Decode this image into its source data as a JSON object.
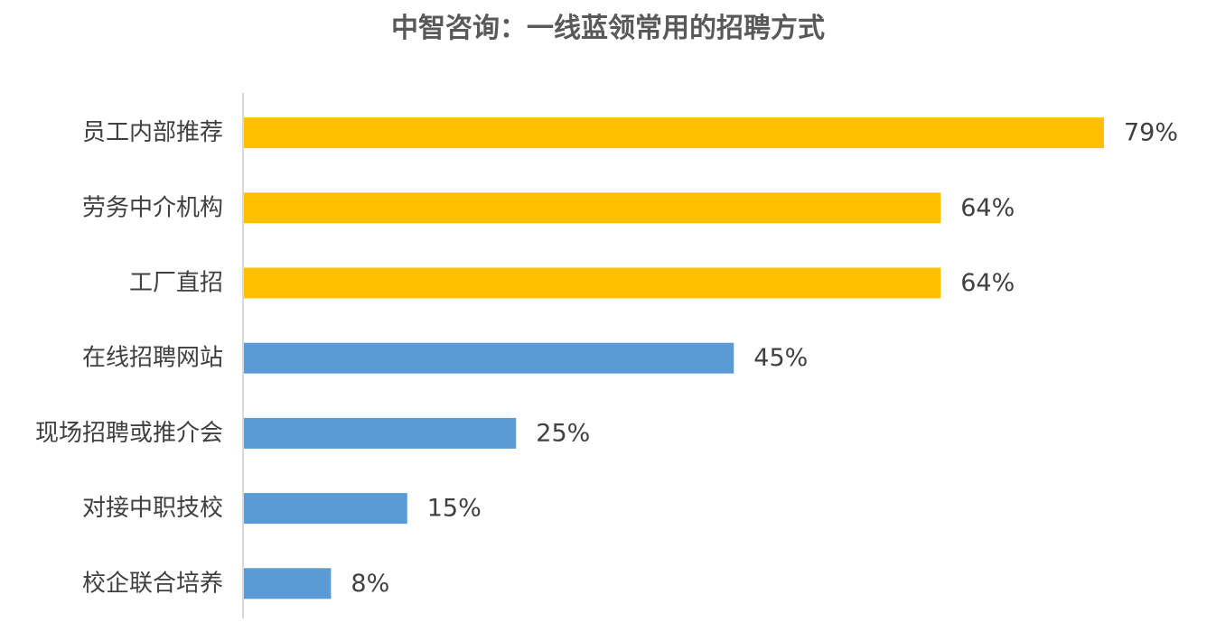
{
  "chart_data": {
    "type": "bar",
    "orientation": "horizontal",
    "title": "中智咨询：一线蓝领常用的招聘方式",
    "categories": [
      "员工内部推荐",
      "劳务中介机构",
      "工厂直招",
      "在线招聘网站",
      "现场招聘或推介会",
      "对接中职技校",
      "校企联合培养"
    ],
    "values": [
      79,
      64,
      64,
      45,
      25,
      15,
      8
    ],
    "value_labels": [
      "79%",
      "64%",
      "64%",
      "45%",
      "25%",
      "15%",
      "8%"
    ],
    "bar_colors": [
      "#FFC000",
      "#FFC000",
      "#FFC000",
      "#5B9BD5",
      "#5B9BD5",
      "#5B9BD5",
      "#5B9BD5"
    ],
    "xlim": [
      0,
      79
    ],
    "grid": false,
    "legend": "none"
  }
}
